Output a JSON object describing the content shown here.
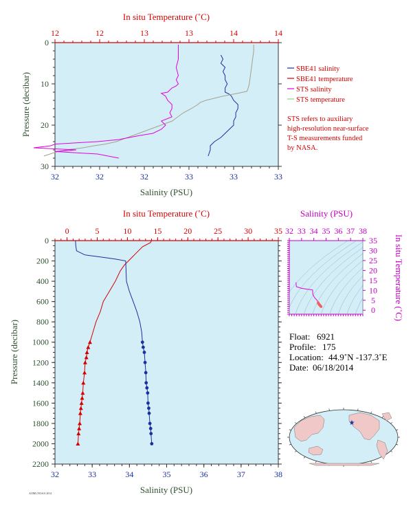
{
  "chart_data": [
    {
      "type": "line",
      "top_axis_label": "In situ Temperature (˚C)",
      "bottom_axis_label": "Salinity (PSU)",
      "ylabel": "Pressure (decibar)",
      "ylim": [
        0,
        30
      ],
      "yticks": [
        "0",
        "10",
        "20",
        "30"
      ],
      "top_ticks": [
        "12",
        "12",
        "13",
        "13",
        "14",
        "14"
      ],
      "bottom_ticks": [
        "32",
        "32",
        "32",
        "33",
        "33",
        "33"
      ],
      "temp_lim": [
        12,
        14.0
      ],
      "sal_lim": [
        32.0,
        33.05
      ],
      "legend": [
        "SBE41 salinity",
        "SBE41 temperature",
        "STS salinity",
        "STS temperature"
      ],
      "legend_colors": [
        "#1a2fa0",
        "#d40000",
        "#e000e0",
        "#7fd87f"
      ],
      "note": [
        "STS refers to auxiliary",
        "high-resolution near-surface",
        "T-S measurements funded",
        "by NASA."
      ],
      "series": [
        {
          "name": "SBE41 salinity",
          "color": "#1a2fa0",
          "axis": "bottom",
          "x": [
            32.78,
            32.79,
            32.78,
            32.8,
            32.79,
            32.8,
            32.8,
            32.81,
            32.8,
            32.8,
            32.82,
            32.83,
            32.84,
            32.86,
            32.86,
            32.85,
            32.85,
            32.84,
            32.84,
            32.82,
            32.8,
            32.78,
            32.75,
            32.73,
            32.73,
            32.72
          ],
          "y": [
            3,
            4,
            5,
            6,
            7,
            8,
            9,
            10,
            11,
            12,
            12.5,
            13,
            14,
            15,
            16,
            17,
            18,
            19,
            20,
            21,
            22,
            23,
            24,
            25,
            26,
            27.5
          ]
        },
        {
          "name": "STS temperature",
          "color": "#a7a08a",
          "axis": "top",
          "x": [
            13.78,
            13.78,
            13.77,
            13.76,
            13.75,
            13.74,
            13.73,
            13.72,
            13.65,
            13.5,
            13.35,
            13.3,
            13.28,
            13.25,
            13.22,
            13.15,
            13.1,
            13.05,
            12.95,
            12.85,
            12.75,
            12.65,
            12.55,
            12.45,
            12.35,
            12.25,
            12.1,
            12.0,
            11.9
          ],
          "y": [
            0.5,
            2,
            4,
            6,
            8,
            10,
            11,
            11.8,
            12.2,
            13,
            14,
            14.5,
            15,
            15.5,
            16,
            17,
            18,
            19,
            20,
            21,
            22,
            23,
            24,
            24.6,
            25,
            25.5,
            26,
            26.6,
            27.5
          ]
        },
        {
          "name": "STS salinity",
          "color": "#e000e0",
          "axis": "bottom",
          "x": [
            32.58,
            32.58,
            32.58,
            32.57,
            32.58,
            32.57,
            32.58,
            32.57,
            32.55,
            32.54,
            32.53,
            32.5,
            32.52,
            32.53,
            32.55,
            32.55,
            32.54,
            32.55,
            32.5,
            32.52,
            32.5,
            32.46,
            32.4,
            32.35,
            32.3,
            32.2,
            32.0,
            31.98,
            31.9,
            32.1,
            32.0,
            32.2,
            32.3
          ],
          "y": [
            0.5,
            2,
            4,
            6,
            8,
            9,
            10,
            10.5,
            11,
            11.5,
            12,
            12.3,
            13,
            14,
            15,
            16,
            17,
            18,
            19,
            20,
            21,
            22,
            22.5,
            23,
            23.5,
            24,
            24.6,
            25,
            25.5,
            26,
            26.4,
            27,
            28
          ]
        }
      ]
    },
    {
      "type": "line",
      "top_axis_label": "In situ Temperature (˚C)",
      "bottom_axis_label": "Salinity (PSU)",
      "ylabel": "Pressure (decibar)",
      "ylim": [
        0,
        2200
      ],
      "yticks": [
        "0",
        "200",
        "400",
        "600",
        "800",
        "1000",
        "1200",
        "1400",
        "1600",
        "1800",
        "2000",
        "2200"
      ],
      "xlim_temp": [
        -2,
        35
      ],
      "top_ticks": [
        "0",
        "5",
        "10",
        "15",
        "20",
        "25",
        "30",
        "35"
      ],
      "xlim_sal": [
        32,
        38
      ],
      "bottom_ticks": [
        "32",
        "33",
        "34",
        "35",
        "36",
        "37",
        "38"
      ],
      "series": [
        {
          "name": "SBE41 temperature",
          "color": "#d40000",
          "axis": "top",
          "marker": "triangle",
          "x": [
            14.0,
            13.8,
            12.5,
            11.5,
            10.5,
            9.5,
            8.8,
            8.0,
            7.0,
            6.0,
            5.5,
            4.8,
            4.3,
            3.8,
            3.5,
            3.3,
            3.2,
            3.0,
            2.9,
            2.7,
            2.6,
            2.5,
            2.4,
            2.3,
            2.2,
            2.1,
            2.0,
            1.9,
            1.8
          ],
          "y": [
            0,
            20,
            60,
            120,
            180,
            240,
            300,
            400,
            500,
            600,
            700,
            800,
            900,
            1000,
            1050,
            1100,
            1150,
            1200,
            1300,
            1400,
            1500,
            1550,
            1600,
            1650,
            1700,
            1800,
            1850,
            1900,
            2000
          ]
        },
        {
          "name": "SBE41 salinity",
          "color": "#1a2fa0",
          "axis": "bottom",
          "marker": "dot",
          "x": [
            32.55,
            32.56,
            32.58,
            32.8,
            33.2,
            33.6,
            33.9,
            33.92,
            34.0,
            34.1,
            34.2,
            34.28,
            34.33,
            34.35,
            34.37,
            34.4,
            34.42,
            34.44,
            34.45,
            34.47,
            34.49,
            34.5,
            34.52,
            34.53,
            34.55,
            34.57,
            34.58,
            34.6
          ],
          "y": [
            0,
            50,
            100,
            140,
            160,
            180,
            200,
            400,
            500,
            600,
            700,
            800,
            900,
            1000,
            1050,
            1100,
            1200,
            1300,
            1400,
            1450,
            1500,
            1600,
            1650,
            1700,
            1800,
            1850,
            1900,
            2000
          ]
        }
      ]
    }
  ],
  "ts_inset": {
    "top_axis_label": "Salinity (PSU)",
    "right_axis_label": "In situ Temperature (˚C)",
    "top_ticks": [
      "32",
      "33",
      "34",
      "35",
      "36",
      "37",
      "38"
    ],
    "right_ticks": [
      "0",
      "5",
      "10",
      "15",
      "20",
      "25",
      "30",
      "35"
    ]
  },
  "info": {
    "float_label": "Float:",
    "float_value": "6921",
    "profile_label": "Profile:",
    "profile_value": "175",
    "location_label": "Location:",
    "location_value": "44.9˚N  -137.3˚E",
    "date_label": "Date:",
    "date_value": "06/18/2014"
  },
  "footer_credit": "AOML/NOAA 2014",
  "colors": {
    "bg": "#d4eef7",
    "red": "#d40000",
    "blue": "#1a2fa0",
    "magenta": "#c000c0",
    "green": "#2f4f2f"
  }
}
